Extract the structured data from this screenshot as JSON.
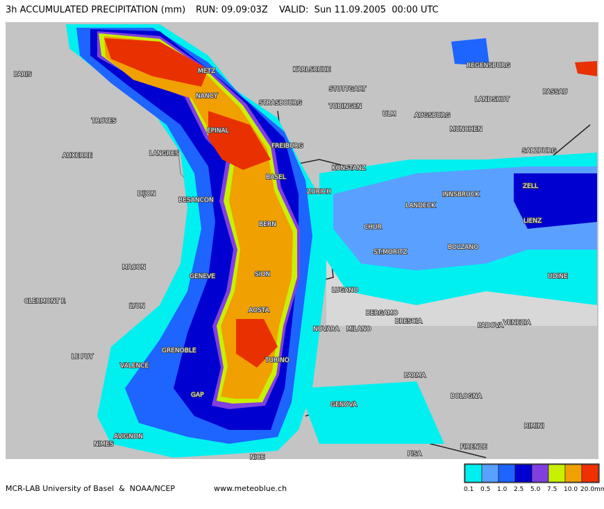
{
  "header": {
    "title": "3h ACCUMULATED PRECIPITATION (mm)",
    "run": "RUN: 09.09:03Z",
    "valid": "VALID:  Sun 11.09.2005  00:00 UTC"
  },
  "cities": [
    "PARIS",
    "METZ",
    "KARLSRUHE",
    "REGENSBURG",
    "PASSAU",
    "NANCY",
    "STRASBOURG",
    "STUTTGART",
    "TUBINGEN",
    "ULM",
    "AUGSBURG",
    "LANDSHUT",
    "TROYES",
    "EPINAL",
    "MUNCHEN",
    "AUXERRE",
    "LANGRES",
    "FREIBURG",
    "SALZBURG",
    "KONSTANZ",
    "BASEL",
    "DIJON",
    "BESANCON",
    "ZURICH",
    "LANDECK",
    "INNSBRUCK",
    "ZELL",
    "BERN",
    "LIENZ",
    "CHUR",
    "BOLZANO",
    "ST.MORITZ",
    "MACON",
    "GENEVE",
    "SION",
    "UDINE",
    "CLERMONT F.",
    "LYON",
    "LUGANO",
    "AOSTA",
    "BERGAMO",
    "BRESCIA",
    "PADOVA",
    "VENEZIA",
    "NOVARA",
    "MILANO",
    "GRENOBLE",
    "LE PUY",
    "TURINO",
    "VALENCE",
    "PARMA",
    "GAP",
    "BOLOGNA",
    "GENOVA",
    "AVIGNON",
    "NIMES",
    "NICE",
    "PISA",
    "FIRENZE",
    "RIMINI"
  ],
  "footer": {
    "credit": "MCR-LAB University of Basel  &  NOAA/NCEP",
    "website": "www.meteoblue.ch"
  },
  "legend": [
    {
      "label": "0.1",
      "color": "#00f0f0"
    },
    {
      "label": "0.5",
      "color": "#5aa0ff"
    },
    {
      "label": "1.0",
      "color": "#1e64ff"
    },
    {
      "label": "2.5",
      "color": "#0000d0"
    },
    {
      "label": "5.0",
      "color": "#8040e0"
    },
    {
      "label": "7.5",
      "color": "#c8f000"
    },
    {
      "label": "10.0",
      "color": "#f0a000"
    },
    {
      "label": "20.0mm",
      "color": "#f03000"
    }
  ]
}
